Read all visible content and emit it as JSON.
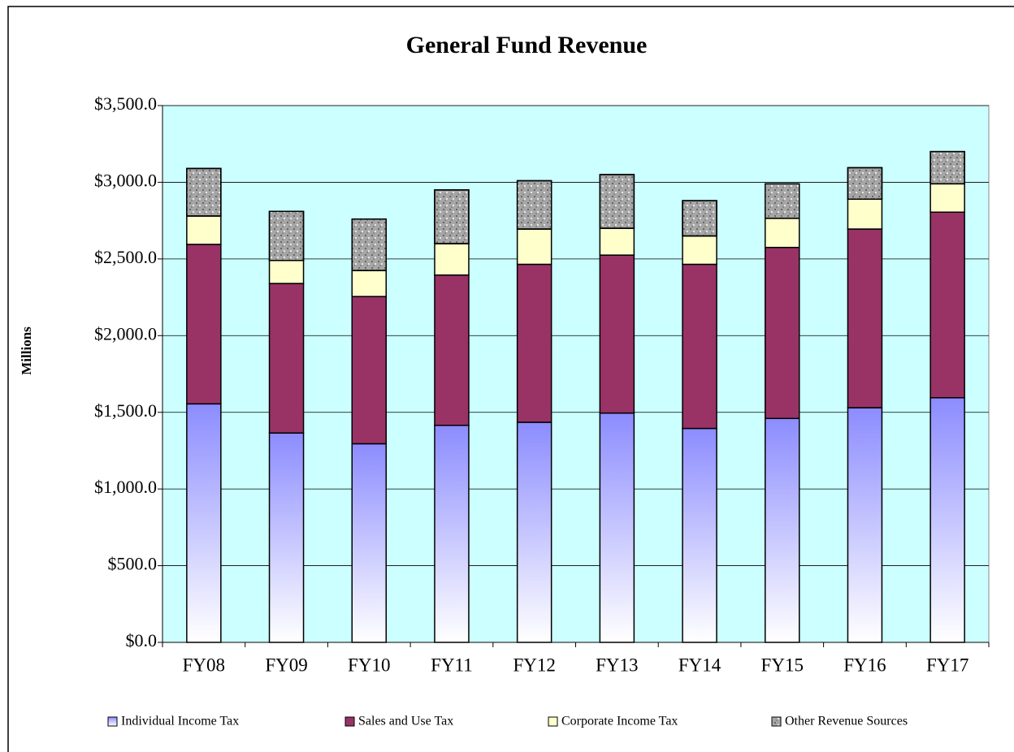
{
  "chart_data": {
    "type": "stacked-bar",
    "title": "General Fund Revenue",
    "y_label": "Millions",
    "categories": [
      "FY08",
      "FY09",
      "FY10",
      "FY11",
      "FY12",
      "FY13",
      "FY14",
      "FY15",
      "FY16",
      "FY17"
    ],
    "series": [
      {
        "name": "Individual Income Tax",
        "color": "#8c8cff",
        "values": [
          1555,
          1365,
          1295,
          1415,
          1435,
          1495,
          1395,
          1460,
          1530,
          1595
        ]
      },
      {
        "name": "Sales and Use Tax",
        "color": "#993366",
        "values": [
          1040,
          975,
          960,
          980,
          1030,
          1030,
          1070,
          1115,
          1165,
          1210
        ]
      },
      {
        "name": "Corporate Income Tax",
        "color": "#ffffcc",
        "values": [
          185,
          150,
          170,
          205,
          230,
          175,
          185,
          190,
          195,
          185
        ]
      },
      {
        "name": "Other Revenue Sources",
        "color": "#a6a6a6",
        "values": [
          310,
          320,
          335,
          350,
          315,
          350,
          230,
          225,
          205,
          210
        ]
      }
    ],
    "ylim": [
      0,
      3500
    ],
    "yticks": [
      {
        "value": 0,
        "label": "$0.0"
      },
      {
        "value": 500,
        "label": "$500.0"
      },
      {
        "value": 1000,
        "label": "$1,000.0"
      },
      {
        "value": 1500,
        "label": "$1,500.0"
      },
      {
        "value": 2000,
        "label": "$2,000.0"
      },
      {
        "value": 2500,
        "label": "$2,500.0"
      },
      {
        "value": 3000,
        "label": "$3,000.0"
      },
      {
        "value": 3500,
        "label": "$3,500.0"
      }
    ],
    "grid": true,
    "plot_background": "#ccffff",
    "legend": "bottom"
  }
}
